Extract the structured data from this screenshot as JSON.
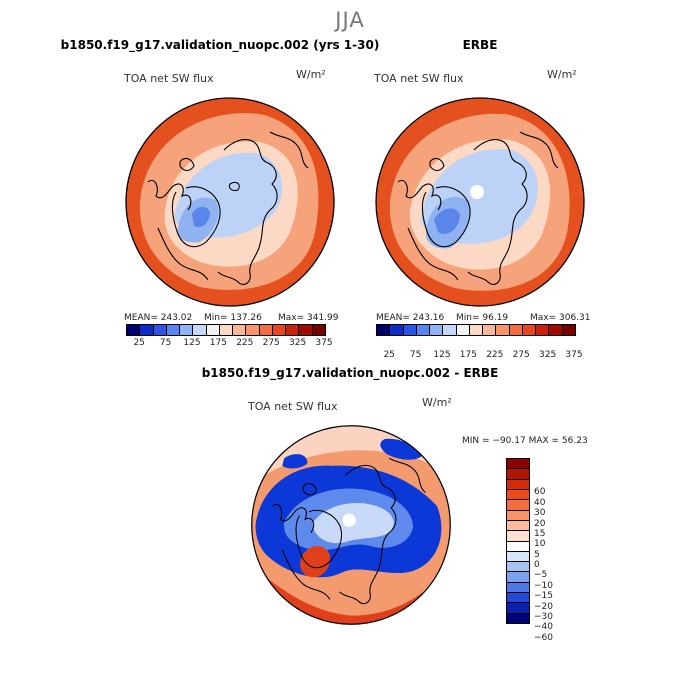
{
  "season": "JJA",
  "panels": {
    "model": {
      "title": "b1850.f19_g17.validation_nuopc.002 (yrs 1-30)",
      "field": "TOA net SW flux",
      "units": "W/m²",
      "mean": "MEAN= 243.02",
      "min": "Min= 137.26",
      "max": "Max= 341.99"
    },
    "obs": {
      "title": "ERBE",
      "field": "TOA net SW flux",
      "units": "W/m²",
      "mean": "MEAN= 243.16",
      "min": "Min=  96.19",
      "max": "Max= 306.31"
    },
    "diff": {
      "title": "b1850.f19_g17.validation_nuopc.002 - ERBE",
      "field": "TOA net SW flux",
      "units": "W/m²",
      "minmax": "MIN = −90.17 MAX =  56.23"
    }
  },
  "colorbar_abs": {
    "labels": [
      "25",
      "75",
      "125",
      "175",
      "225",
      "275",
      "325",
      "375"
    ],
    "colors": [
      "#00006e",
      "#0b2dc8",
      "#2c55e6",
      "#5585f0",
      "#8eb4f5",
      "#c4d8fa",
      "#f2f2f2",
      "#fdd9c3",
      "#fbb896",
      "#f8946b",
      "#f36e43",
      "#e8461f",
      "#c9200d",
      "#a00a00",
      "#780000"
    ]
  },
  "colorbar_diff": {
    "labels": [
      "60",
      "40",
      "30",
      "20",
      "15",
      "10",
      "5",
      "0",
      "−5",
      "−10",
      "−15",
      "−20",
      "−30",
      "−40",
      "−60"
    ],
    "colors": [
      "#8b0000",
      "#b21504",
      "#d42a0c",
      "#eb4a1a",
      "#f36d3e",
      "#f9946a",
      "#fcbc9c",
      "#fde1d0",
      "#ffffff",
      "#d8e6fa",
      "#a6c4f4",
      "#7aa2ef",
      "#4d78e8",
      "#2449d8",
      "#0a1fb0",
      "#00007a"
    ]
  },
  "map_colors": {
    "abs_high": "#e5501f",
    "abs_mid": "#f6a27a",
    "abs_low": "#fcd9c4",
    "abs_cold": "#bcd2f7",
    "abs_cool": "#8fb2f0",
    "abs_blue": "#5a86ea",
    "diff_blue": "#0b38d6",
    "diff_lblue": "#5d8aec",
    "diff_pale": "#c9daf8",
    "diff_red": "#e04019",
    "diff_lred": "#f39a6e",
    "diff_pink": "#fcd3c0"
  }
}
